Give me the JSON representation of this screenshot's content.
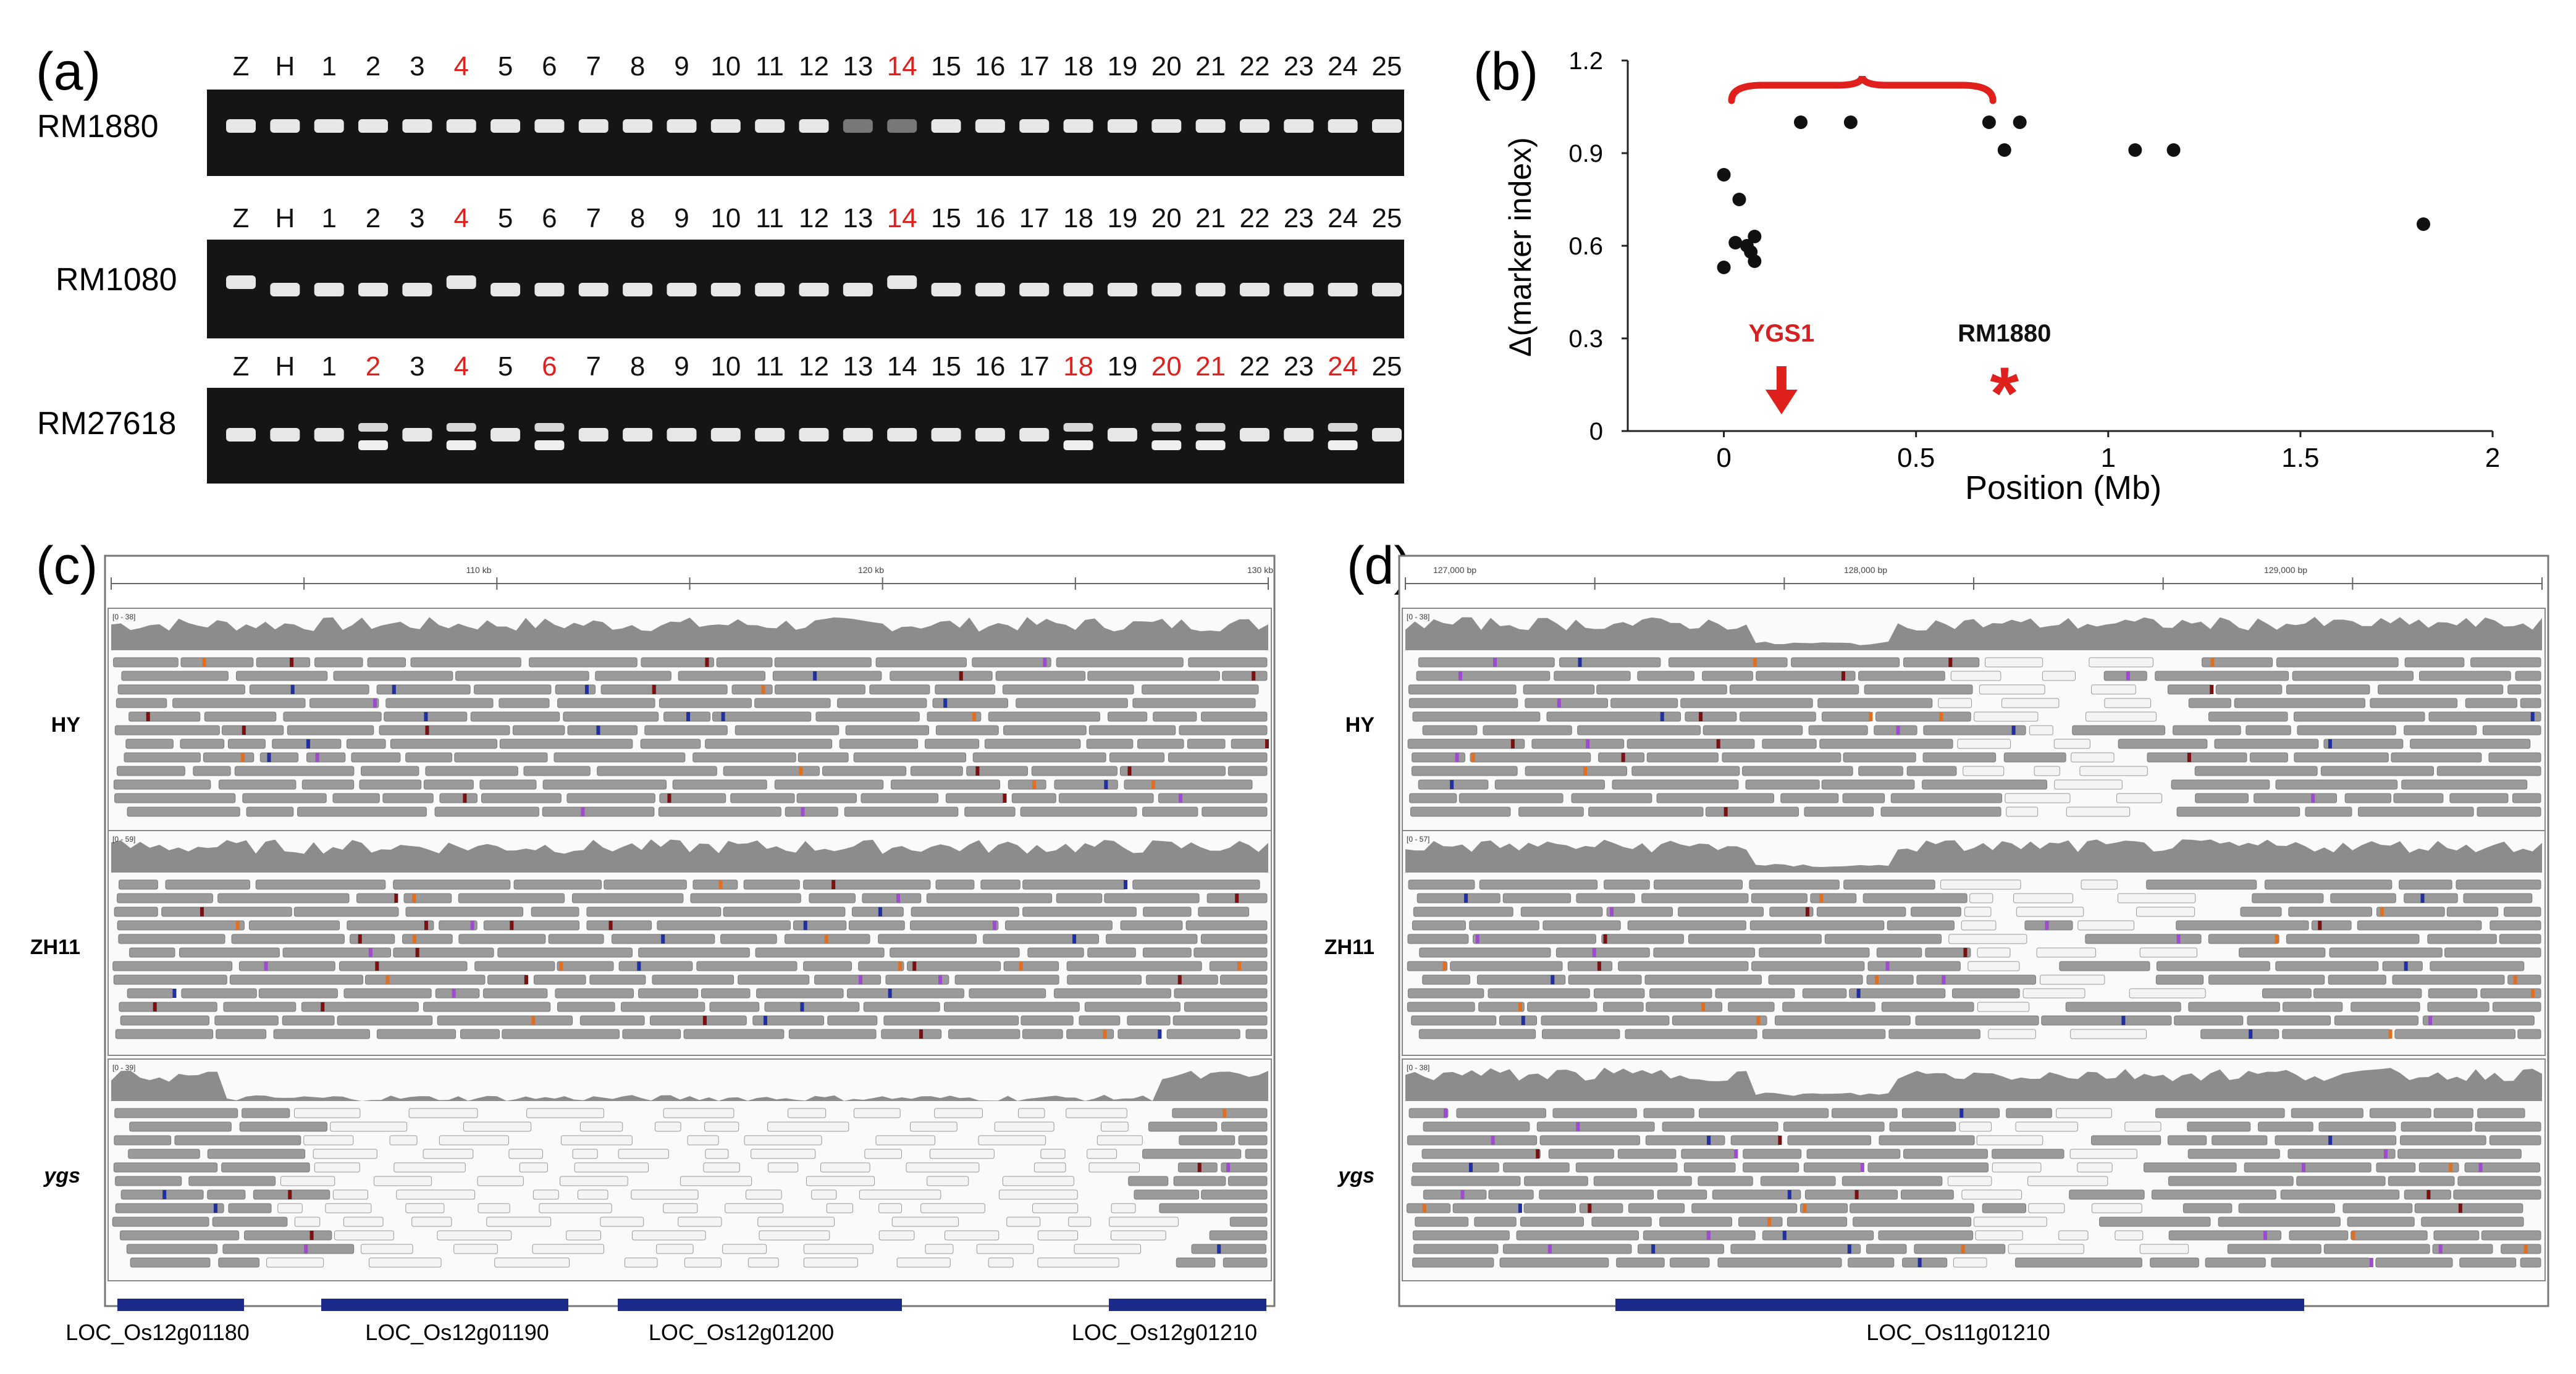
{
  "panel_a": {
    "label": "(a)",
    "gels": [
      {
        "marker": "RM1880",
        "lanes": [
          "Z",
          "H",
          "1",
          "2",
          "3",
          "4",
          "5",
          "6",
          "7",
          "8",
          "9",
          "10",
          "11",
          "12",
          "13",
          "14",
          "15",
          "16",
          "17",
          "18",
          "19",
          "20",
          "21",
          "22",
          "23",
          "24",
          "25"
        ],
        "highlighted_lanes": [
          "4",
          "14"
        ]
      },
      {
        "marker": "RM1080",
        "lanes": [
          "Z",
          "H",
          "1",
          "2",
          "3",
          "4",
          "5",
          "6",
          "7",
          "8",
          "9",
          "10",
          "11",
          "12",
          "13",
          "14",
          "15",
          "16",
          "17",
          "18",
          "19",
          "20",
          "21",
          "22",
          "23",
          "24",
          "25"
        ],
        "highlighted_lanes": [
          "4",
          "14"
        ]
      },
      {
        "marker": "RM27618",
        "lanes": [
          "Z",
          "H",
          "1",
          "2",
          "3",
          "4",
          "5",
          "6",
          "7",
          "8",
          "9",
          "10",
          "11",
          "12",
          "13",
          "14",
          "15",
          "16",
          "17",
          "18",
          "19",
          "20",
          "21",
          "22",
          "23",
          "24",
          "25"
        ],
        "highlighted_lanes": [
          "2",
          "4",
          "6",
          "18",
          "20",
          "21",
          "24"
        ]
      }
    ]
  },
  "chart_data": {
    "type": "scatter",
    "label": "(b)",
    "xlabel": "Position (Mb)",
    "ylabel": "Δ(marker index)",
    "xlim": [
      -0.25,
      2.0
    ],
    "ylim": [
      0,
      1.2
    ],
    "xticks": [
      "0",
      "0.5",
      "1",
      "1.5",
      "2"
    ],
    "yticks": [
      "0",
      "0.3",
      "0.6",
      "0.9",
      "1.2"
    ],
    "points": [
      {
        "x": 0.0,
        "y": 0.83
      },
      {
        "x": 0.04,
        "y": 0.75
      },
      {
        "x": 0.03,
        "y": 0.61
      },
      {
        "x": 0.06,
        "y": 0.6
      },
      {
        "x": 0.08,
        "y": 0.63
      },
      {
        "x": 0.07,
        "y": 0.58
      },
      {
        "x": 0.08,
        "y": 0.55
      },
      {
        "x": 0.0,
        "y": 0.53
      },
      {
        "x": 0.2,
        "y": 1.0
      },
      {
        "x": 0.33,
        "y": 1.0
      },
      {
        "x": 0.69,
        "y": 1.0
      },
      {
        "x": 0.73,
        "y": 0.91
      },
      {
        "x": 0.77,
        "y": 1.0
      },
      {
        "x": 1.07,
        "y": 0.91
      },
      {
        "x": 1.17,
        "y": 0.91
      },
      {
        "x": 1.82,
        "y": 0.67
      }
    ],
    "brace": {
      "x_from": 0.02,
      "x_to": 0.7
    },
    "annotations": [
      {
        "text": "YGS1",
        "x": 0.15,
        "color": "#d42020"
      },
      {
        "text": "RM1880",
        "x": 0.73,
        "color": "#111111"
      }
    ],
    "colors": {
      "points": "#111111",
      "highlight": "#e0201c"
    }
  },
  "panel_c": {
    "label": "(c)",
    "ruler_ticks": [
      "110 kb",
      "120 kb",
      "130 kb"
    ],
    "tracks": [
      {
        "sample": "HY",
        "range": "[0 - 38]"
      },
      {
        "sample": "ZH11",
        "range": "[0 - 59]"
      },
      {
        "sample": "ygs",
        "range": "[0 - 39]"
      }
    ],
    "genes": [
      "LOC_Os12g01180",
      "LOC_Os12g01190",
      "LOC_Os12g01200",
      "LOC_Os12g01210"
    ]
  },
  "panel_d": {
    "label": "(d)",
    "ruler_ticks": [
      "127,000 bp",
      "128,000 bp",
      "129,000 bp"
    ],
    "tracks": [
      {
        "sample": "HY",
        "range": "[0 - 38]"
      },
      {
        "sample": "ZH11",
        "range": "[0 - 57]"
      },
      {
        "sample": "ygs",
        "range": "[0 - 38]"
      }
    ],
    "genes": [
      "LOC_Os11g01210"
    ]
  },
  "colors": {
    "highlight": "#e0201c",
    "gel_bg": "#151515",
    "read_fill": "#9a9a9a",
    "coverage_fill": "#8c8c8c",
    "gene_fill": "#1c2a8c"
  }
}
